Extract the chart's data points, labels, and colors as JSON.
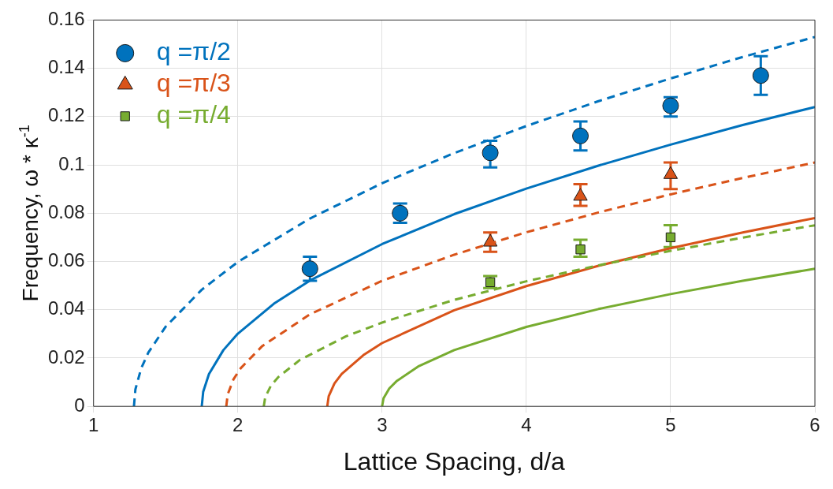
{
  "chart_data": {
    "type": "scatter",
    "xlabel": "Lattice Spacing, d/a",
    "ylabel": "Frequency, ω * κ$^{-1}$",
    "xlim": [
      1,
      6
    ],
    "ylim": [
      0,
      0.16
    ],
    "xticks": [
      1,
      2,
      3,
      4,
      5,
      6
    ],
    "yticks": [
      0,
      0.02,
      0.04,
      0.06,
      0.08,
      0.1,
      0.12,
      0.14,
      0.16
    ],
    "grid": true,
    "legend": "top left",
    "series": [
      {
        "type": "line",
        "color": "#0072bd",
        "line_style": "dashed",
        "marker": "none",
        "x": [
          1.28,
          1.29,
          1.33,
          1.38,
          1.5,
          1.75,
          2,
          2.5,
          3,
          3.5,
          4,
          4.5,
          5,
          5.5,
          6
        ],
        "values": [
          0,
          0.007,
          0.0157,
          0.0223,
          0.033,
          0.0483,
          0.0598,
          0.0778,
          0.0924,
          0.1049,
          0.1161,
          0.1264,
          0.1358,
          0.1447,
          0.153
        ]
      },
      {
        "type": "line",
        "color": "#0072bd",
        "line_style": "solid",
        "marker": "none",
        "x": [
          1.75,
          1.76,
          1.8,
          1.9,
          2,
          2.25,
          2.5,
          3,
          3.5,
          4,
          4.5,
          5,
          5.5,
          6
        ],
        "values": [
          0,
          0.006,
          0.0134,
          0.0233,
          0.0301,
          0.0425,
          0.0521,
          0.0672,
          0.0796,
          0.0902,
          0.0997,
          0.1084,
          0.1165,
          0.124
        ]
      },
      {
        "type": "line",
        "color": "#d95319",
        "line_style": "dashed",
        "marker": "none",
        "x": [
          1.92,
          1.93,
          1.97,
          2.02,
          2.17,
          2.5,
          3,
          3.5,
          4,
          4.5,
          5,
          5.5,
          6
        ],
        "values": [
          0,
          0.005,
          0.0112,
          0.0158,
          0.025,
          0.0381,
          0.052,
          0.0628,
          0.0721,
          0.0803,
          0.0878,
          0.0946,
          0.101
        ]
      },
      {
        "type": "line",
        "color": "#77ac30",
        "line_style": "dashed",
        "marker": "none",
        "x": [
          2.18,
          2.19,
          2.23,
          2.28,
          2.43,
          2.75,
          3,
          3.5,
          4,
          4.5,
          5,
          5.5,
          6
        ],
        "values": [
          0,
          0.0038,
          0.0086,
          0.0121,
          0.0192,
          0.029,
          0.0347,
          0.0441,
          0.0518,
          0.0584,
          0.0644,
          0.0699,
          0.075
        ]
      },
      {
        "type": "line",
        "color": "#d95319",
        "line_style": "solid",
        "marker": "none",
        "x": [
          2.62,
          2.63,
          2.67,
          2.72,
          2.87,
          3,
          3.5,
          4,
          4.5,
          5,
          5.5,
          6
        ],
        "values": [
          0,
          0.0042,
          0.0095,
          0.0134,
          0.0212,
          0.0262,
          0.0398,
          0.0498,
          0.0582,
          0.0655,
          0.072,
          0.078
        ]
      },
      {
        "type": "line",
        "color": "#77ac30",
        "line_style": "solid",
        "marker": "none",
        "x": [
          3,
          3.01,
          3.05,
          3.1,
          3.25,
          3.5,
          4,
          4.5,
          5,
          5.5,
          6
        ],
        "values": [
          0,
          0.0033,
          0.0074,
          0.0104,
          0.0165,
          0.0233,
          0.0329,
          0.0403,
          0.0465,
          0.052,
          0.057
        ]
      },
      {
        "type": "scatter",
        "name": "q =π/2",
        "color": "#0072bd",
        "marker": "circle",
        "x": [
          2.5,
          3.125,
          3.75,
          4.375,
          5,
          5.625
        ],
        "values": [
          0.057,
          0.08,
          0.105,
          0.112,
          0.1245,
          0.137
        ],
        "errors": [
          [
            0.052,
            0.062
          ],
          [
            0.076,
            0.084
          ],
          [
            0.099,
            0.11
          ],
          [
            0.106,
            0.118
          ],
          [
            0.12,
            0.128
          ],
          [
            0.129,
            0.145
          ]
        ]
      },
      {
        "type": "scatter",
        "name": "q =π/3",
        "color": "#d95319",
        "marker": "triangle",
        "x": [
          3.75,
          4.375,
          5
        ],
        "values": [
          0.068,
          0.087,
          0.096
        ],
        "errors": [
          [
            0.064,
            0.072
          ],
          [
            0.083,
            0.092
          ],
          [
            0.09,
            0.101
          ]
        ]
      },
      {
        "type": "scatter",
        "name": "q =π/4",
        "color": "#77ac30",
        "marker": "square",
        "x": [
          3.75,
          4.375,
          5
        ],
        "values": [
          0.0514,
          0.065,
          0.07
        ],
        "errors": [
          [
            0.049,
            0.054
          ],
          [
            0.062,
            0.069
          ],
          [
            0.066,
            0.075
          ]
        ]
      }
    ]
  }
}
